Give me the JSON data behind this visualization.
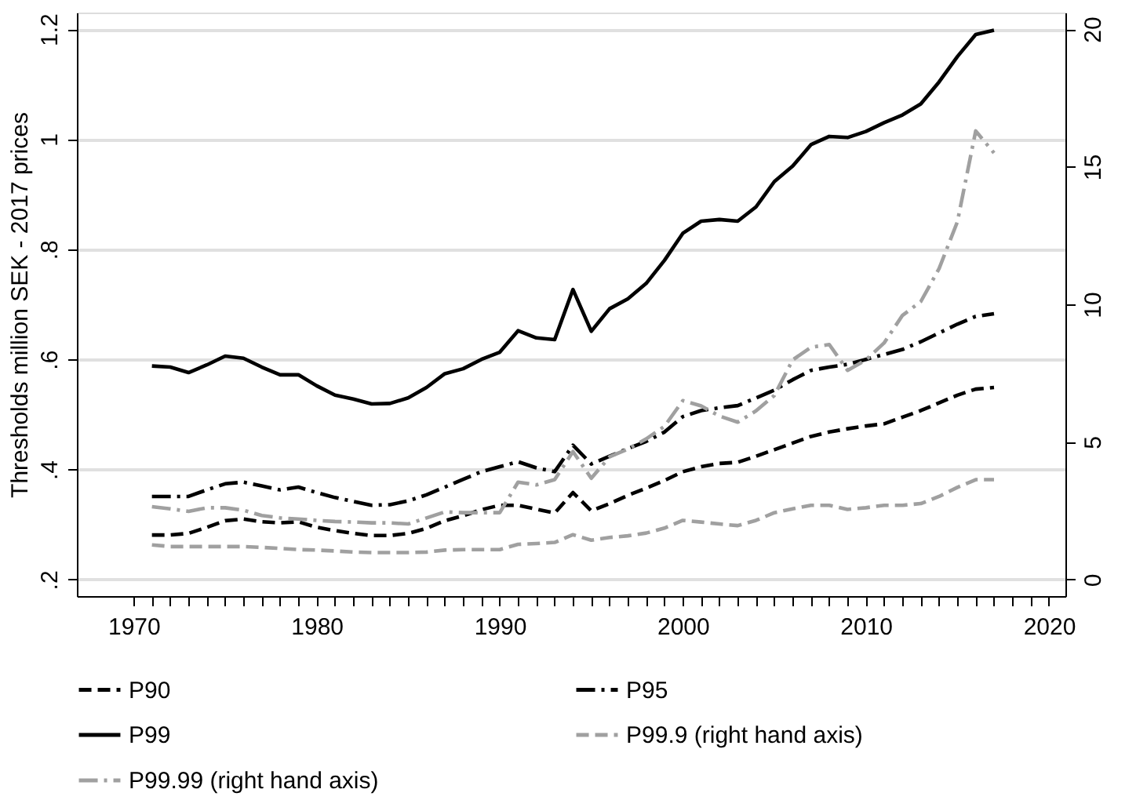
{
  "chart_data": {
    "type": "line",
    "ylabel": "Thresholds million SEK - 2017 prices",
    "x": [
      1971,
      1972,
      1973,
      1974,
      1975,
      1976,
      1977,
      1978,
      1979,
      1980,
      1981,
      1982,
      1983,
      1984,
      1985,
      1986,
      1987,
      1988,
      1989,
      1990,
      1991,
      1992,
      1993,
      1994,
      1995,
      1996,
      1997,
      1998,
      1999,
      2000,
      2001,
      2002,
      2003,
      2004,
      2005,
      2006,
      2007,
      2008,
      2009,
      2010,
      2011,
      2012,
      2013,
      2014,
      2015,
      2016,
      2017
    ],
    "xlim": [
      1966.9,
      2020.9
    ],
    "xticks": [
      1970,
      {
        "value": 1971,
        "label": null
      },
      {
        "value": 1972,
        "label": null
      },
      {
        "value": 1973,
        "label": null
      },
      {
        "value": 1974,
        "label": null
      },
      {
        "value": 1975,
        "label": null
      },
      {
        "value": 1976,
        "label": null
      },
      {
        "value": 1977,
        "label": null
      },
      {
        "value": 1978,
        "label": null
      },
      {
        "value": 1979,
        "label": null
      },
      1980,
      {
        "value": 1981,
        "label": null
      },
      {
        "value": 1982,
        "label": null
      },
      {
        "value": 1983,
        "label": null
      },
      {
        "value": 1984,
        "label": null
      },
      {
        "value": 1985,
        "label": null
      },
      {
        "value": 1986,
        "label": null
      },
      {
        "value": 1987,
        "label": null
      },
      {
        "value": 1988,
        "label": null
      },
      {
        "value": 1989,
        "label": null
      },
      1990,
      {
        "value": 1991,
        "label": null
      },
      {
        "value": 1992,
        "label": null
      },
      {
        "value": 1993,
        "label": null
      },
      {
        "value": 1994,
        "label": null
      },
      {
        "value": 1995,
        "label": null
      },
      {
        "value": 1996,
        "label": null
      },
      {
        "value": 1997,
        "label": null
      },
      {
        "value": 1998,
        "label": null
      },
      {
        "value": 1999,
        "label": null
      },
      2000,
      {
        "value": 2001,
        "label": null
      },
      {
        "value": 2002,
        "label": null
      },
      {
        "value": 2003,
        "label": null
      },
      {
        "value": 2004,
        "label": null
      },
      {
        "value": 2005,
        "label": null
      },
      {
        "value": 2006,
        "label": null
      },
      {
        "value": 2007,
        "label": null
      },
      {
        "value": 2008,
        "label": null
      },
      {
        "value": 2009,
        "label": null
      },
      2010,
      {
        "value": 2011,
        "label": null
      },
      {
        "value": 2012,
        "label": null
      },
      {
        "value": 2013,
        "label": null
      },
      {
        "value": 2014,
        "label": null
      },
      {
        "value": 2015,
        "label": null
      },
      {
        "value": 2016,
        "label": null
      },
      {
        "value": 2017,
        "label": null
      },
      {
        "value": 2018,
        "label": null
      },
      {
        "value": 2019,
        "label": null
      },
      2020
    ],
    "ylim": [
      0.17,
      1.23
    ],
    "yticks": [
      {
        "value": 0.2,
        "label": ".2"
      },
      {
        "value": 0.4,
        "label": ".4"
      },
      {
        "value": 0.6,
        "label": ".6"
      },
      {
        "value": 0.8,
        "label": ".8"
      },
      1,
      1.2
    ],
    "y2lim": [
      -0.6,
      20.6
    ],
    "y2ticks": [
      0,
      5,
      10,
      15,
      20
    ],
    "grid": "y",
    "legend": "bottom",
    "marker": "none",
    "series": [
      {
        "name": "P90",
        "color": "#000000",
        "line_style": "dashed",
        "values": [
          0.281,
          0.281,
          0.284,
          0.295,
          0.307,
          0.31,
          0.305,
          0.303,
          0.305,
          0.295,
          0.289,
          0.284,
          0.28,
          0.28,
          0.284,
          0.293,
          0.307,
          0.316,
          0.327,
          0.335,
          0.335,
          0.328,
          0.321,
          0.358,
          0.325,
          0.338,
          0.353,
          0.366,
          0.38,
          0.396,
          0.405,
          0.411,
          0.413,
          0.424,
          0.436,
          0.448,
          0.46,
          0.468,
          0.474,
          0.479,
          0.483,
          0.495,
          0.507,
          0.521,
          0.535,
          0.546,
          0.549
        ]
      },
      {
        "name": "P95",
        "color": "#000000",
        "line_style": "dashdot",
        "values": [
          0.351,
          0.351,
          0.351,
          0.363,
          0.374,
          0.377,
          0.37,
          0.363,
          0.368,
          0.358,
          0.349,
          0.342,
          0.335,
          0.336,
          0.343,
          0.354,
          0.368,
          0.382,
          0.396,
          0.405,
          0.414,
          0.403,
          0.396,
          0.444,
          0.41,
          0.424,
          0.438,
          0.451,
          0.468,
          0.496,
          0.507,
          0.512,
          0.516,
          0.53,
          0.544,
          0.563,
          0.58,
          0.586,
          0.591,
          0.6,
          0.609,
          0.618,
          0.632,
          0.648,
          0.664,
          0.678,
          0.683
        ]
      },
      {
        "name": "P99",
        "color": "#000000",
        "line_style": "solid",
        "values": [
          0.588,
          0.586,
          0.576,
          0.59,
          0.606,
          0.602,
          0.586,
          0.572,
          0.572,
          0.552,
          0.535,
          0.528,
          0.519,
          0.52,
          0.53,
          0.549,
          0.574,
          0.583,
          0.6,
          0.613,
          0.652,
          0.639,
          0.636,
          0.727,
          0.651,
          0.692,
          0.71,
          0.738,
          0.78,
          0.829,
          0.851,
          0.854,
          0.851,
          0.877,
          0.923,
          0.951,
          0.99,
          1.005,
          1.003,
          1.014,
          1.03,
          1.044,
          1.064,
          1.104,
          1.15,
          1.19,
          1.198
        ]
      },
      {
        "name": "P99.9 (right hand axis)",
        "color": "#a0a0a0",
        "line_style": "dashed",
        "axis": "y2",
        "values": [
          1.26,
          1.2,
          1.2,
          1.2,
          1.2,
          1.2,
          1.17,
          1.13,
          1.09,
          1.07,
          1.04,
          1.0,
          0.98,
          0.98,
          0.98,
          1.0,
          1.07,
          1.09,
          1.09,
          1.09,
          1.28,
          1.31,
          1.35,
          1.63,
          1.43,
          1.53,
          1.59,
          1.69,
          1.87,
          2.15,
          2.09,
          2.02,
          1.96,
          2.15,
          2.43,
          2.57,
          2.7,
          2.7,
          2.55,
          2.61,
          2.7,
          2.7,
          2.76,
          3.02,
          3.35,
          3.63,
          3.63
        ]
      },
      {
        "name": "P99.99 (right hand axis)",
        "color": "#a0a0a0",
        "line_style": "dashdot",
        "axis": "y2",
        "values": [
          2.65,
          2.57,
          2.48,
          2.61,
          2.61,
          2.52,
          2.33,
          2.24,
          2.2,
          2.15,
          2.11,
          2.09,
          2.06,
          2.06,
          2.02,
          2.24,
          2.46,
          2.43,
          2.43,
          2.43,
          3.54,
          3.44,
          3.63,
          4.65,
          3.68,
          4.46,
          4.74,
          5.11,
          5.57,
          6.5,
          6.31,
          5.94,
          5.72,
          6.13,
          6.69,
          7.98,
          8.44,
          8.54,
          7.6,
          7.98,
          8.6,
          9.6,
          10.1,
          11.3,
          13.0,
          16.3,
          15.5
        ]
      }
    ]
  }
}
